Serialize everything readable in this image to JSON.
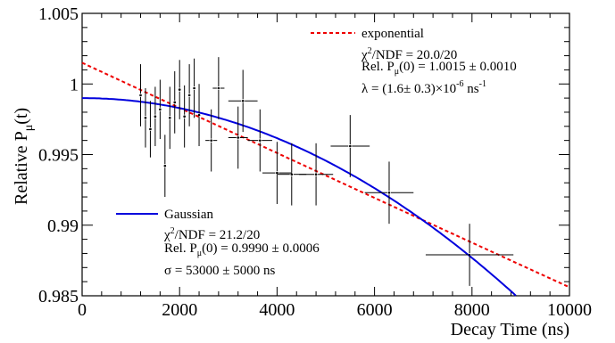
{
  "chart_data": {
    "type": "scatter",
    "xlabel": "Decay Time (ns)",
    "ylabel_main": "Relative P",
    "ylabel_sub": "μ",
    "ylabel_tail": "(t)",
    "xlim": [
      0,
      10000
    ],
    "ylim": [
      0.985,
      1.005
    ],
    "x_ticks": [
      0,
      2000,
      4000,
      6000,
      8000,
      10000
    ],
    "x_tick_labels": [
      "0",
      "2000",
      "4000",
      "6000",
      "8000",
      "10000"
    ],
    "y_ticks": [
      0.985,
      0.99,
      0.995,
      1.0,
      1.005
    ],
    "y_tick_labels": [
      "0.985",
      "0.99",
      "0.995",
      "1",
      "1.005"
    ],
    "grid": false,
    "series": [
      {
        "kind": "points",
        "points": [
          {
            "x": 1200,
            "xerr": 0,
            "y": 0.9992,
            "yerr": 0.0022
          },
          {
            "x": 1300,
            "xerr": 0,
            "y": 0.9976,
            "yerr": 0.0021
          },
          {
            "x": 1400,
            "xerr": 0,
            "y": 0.9968,
            "yerr": 0.002
          },
          {
            "x": 1500,
            "xerr": 0,
            "y": 0.9977,
            "yerr": 0.0021
          },
          {
            "x": 1600,
            "xerr": 0,
            "y": 0.9982,
            "yerr": 0.0021
          },
          {
            "x": 1700,
            "xerr": 0,
            "y": 0.9942,
            "yerr": 0.0022
          },
          {
            "x": 1800,
            "xerr": 0,
            "y": 0.9976,
            "yerr": 0.0022
          },
          {
            "x": 1900,
            "xerr": 0,
            "y": 0.9987,
            "yerr": 0.0022
          },
          {
            "x": 2000,
            "xerr": 0,
            "y": 0.9996,
            "yerr": 0.0021
          },
          {
            "x": 2100,
            "xerr": 0,
            "y": 0.9977,
            "yerr": 0.0022
          },
          {
            "x": 2200,
            "xerr": 0,
            "y": 0.9992,
            "yerr": 0.0022
          },
          {
            "x": 2300,
            "xerr": 0,
            "y": 0.9997,
            "yerr": 0.0021
          },
          {
            "x": 2400,
            "xerr": 0,
            "y": 0.9978,
            "yerr": 0.0022
          },
          {
            "x": 2650,
            "xerr": 120,
            "y": 0.996,
            "yerr": 0.0022
          },
          {
            "x": 2800,
            "xerr": 120,
            "y": 0.9997,
            "yerr": 0.0022
          },
          {
            "x": 3300,
            "xerr": 300,
            "y": 0.9988,
            "yerr": 0.0022
          },
          {
            "x": 3200,
            "xerr": 200,
            "y": 0.9962,
            "yerr": 0.0022
          },
          {
            "x": 3650,
            "xerr": 250,
            "y": 0.996,
            "yerr": 0.0022
          },
          {
            "x": 4000,
            "xerr": 300,
            "y": 0.9937,
            "yerr": 0.0022
          },
          {
            "x": 4300,
            "xerr": 300,
            "y": 0.9936,
            "yerr": 0.0022
          },
          {
            "x": 4800,
            "xerr": 350,
            "y": 0.9936,
            "yerr": 0.0022
          },
          {
            "x": 5500,
            "xerr": 400,
            "y": 0.9956,
            "yerr": 0.0022
          },
          {
            "x": 6300,
            "xerr": 500,
            "y": 0.9923,
            "yerr": 0.0022
          },
          {
            "x": 7950,
            "xerr": 900,
            "y": 0.9879,
            "yerr": 0.0022
          }
        ]
      },
      {
        "kind": "function",
        "name": "exponential",
        "color": "#ee0000",
        "style": "dashed",
        "model": "exponential",
        "p0": 1.0015,
        "lambda_per_ns": 1.6e-06
      },
      {
        "kind": "function",
        "name": "Gaussian",
        "color": "#0000dd",
        "style": "solid",
        "model": "gaussian",
        "p0": 0.999,
        "sigma_ns": 53000
      }
    ],
    "legend": {
      "exponential": {
        "label": "exponential",
        "chi2_main": "χ",
        "chi2_sup": "2",
        "chi2_tail": "/NDF = 20.0/20",
        "p0_main": "Rel. P",
        "p0_sub": "μ",
        "p0_tail": "(0) = 1.0015 ± 0.0010",
        "lambda_main": "λ = (1.6± 0.3)×10",
        "lambda_sup": "-6",
        "lambda_tail": " ns",
        "lambda_unit_sup": "-1"
      },
      "gaussian": {
        "label": "Gaussian",
        "chi2_main": "χ",
        "chi2_sup": "2",
        "chi2_tail": "/NDF = 21.2/20",
        "p0_main": "Rel. P",
        "p0_sub": "μ",
        "p0_tail": "(0) = 0.9990 ± 0.0006",
        "sigma_text": "σ = 53000 ± 5000 ns"
      }
    }
  }
}
